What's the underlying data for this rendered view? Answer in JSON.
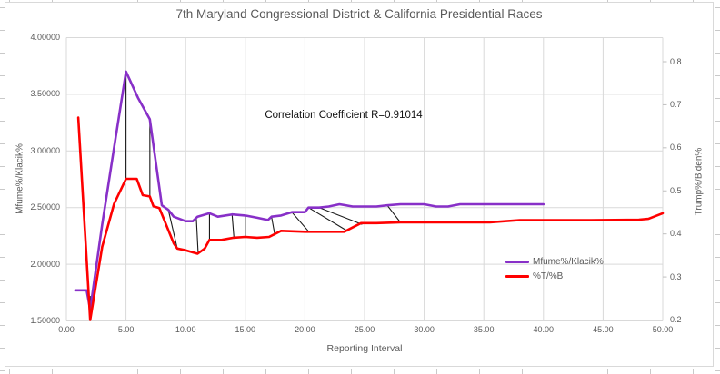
{
  "chart_data": {
    "type": "line",
    "title": "7th Maryland Congressional District & California Presidential Races",
    "annotation": "Correlation Coefficient R=0.91014",
    "xlabel": "Reporting Interval",
    "ylabel_left": "Mfume%/Klacik%",
    "ylabel_right": "Trump%/Biden%",
    "x_range": [
      0,
      50
    ],
    "y_left_range": [
      1.5,
      4.0
    ],
    "y_right_range": [
      0.2,
      0.8
    ],
    "grid": true,
    "legend_position": "inside-right",
    "colors": {
      "series1": "#8830C8",
      "series2": "#FF0000",
      "connector": "#1a1a1a",
      "gridline": "#d9d9d9",
      "axis_text": "#595959"
    },
    "x_ticks": [
      {
        "v": 0,
        "label": "0.00"
      },
      {
        "v": 5,
        "label": "5.00"
      },
      {
        "v": 10,
        "label": "10.00"
      },
      {
        "v": 15,
        "label": "15.00"
      },
      {
        "v": 20,
        "label": "20.00"
      },
      {
        "v": 25,
        "label": "25.00"
      },
      {
        "v": 30,
        "label": "30.00"
      },
      {
        "v": 35,
        "label": "35.00"
      },
      {
        "v": 40,
        "label": "40.00"
      },
      {
        "v": 45,
        "label": "45.00"
      },
      {
        "v": 50,
        "label": "50.00"
      }
    ],
    "y_left_ticks": [
      {
        "v": 1.5,
        "label": "1.50000"
      },
      {
        "v": 2.0,
        "label": "2.00000"
      },
      {
        "v": 2.5,
        "label": "2.50000"
      },
      {
        "v": 3.0,
        "label": "3.00000"
      },
      {
        "v": 3.5,
        "label": "3.50000"
      },
      {
        "v": 4.0,
        "label": "4.00000"
      }
    ],
    "y_right_ticks": [
      {
        "v": 0.2,
        "label": "0.2"
      },
      {
        "v": 0.3,
        "label": "0.3"
      },
      {
        "v": 0.4,
        "label": "0.4"
      },
      {
        "v": 0.5,
        "label": "0.5"
      },
      {
        "v": 0.6,
        "label": "0.6"
      },
      {
        "v": 0.7,
        "label": "0.7"
      },
      {
        "v": 0.8,
        "label": "0.8"
      }
    ],
    "series": [
      {
        "name": "Mfume%/Klacik%",
        "axis": "left",
        "color": "#8830C8",
        "points": [
          [
            0.75,
            1.77
          ],
          [
            1.7,
            1.77
          ],
          [
            2,
            1.6
          ],
          [
            3,
            2.35
          ],
          [
            4,
            3.03
          ],
          [
            5,
            3.7
          ],
          [
            6,
            3.47
          ],
          [
            7,
            3.28
          ],
          [
            8,
            2.52
          ],
          [
            8.55,
            2.48
          ],
          [
            9,
            2.42
          ],
          [
            10,
            2.38
          ],
          [
            10.6,
            2.38
          ],
          [
            11,
            2.42
          ],
          [
            12,
            2.45
          ],
          [
            12.7,
            2.42
          ],
          [
            13.9,
            2.44
          ],
          [
            15,
            2.43
          ],
          [
            16,
            2.41
          ],
          [
            16.9,
            2.39
          ],
          [
            17.2,
            2.42
          ],
          [
            18,
            2.43
          ],
          [
            18.9,
            2.46
          ],
          [
            20,
            2.46
          ],
          [
            20.3,
            2.5
          ],
          [
            21.2,
            2.5
          ],
          [
            22,
            2.51
          ],
          [
            22.9,
            2.53
          ],
          [
            24,
            2.51
          ],
          [
            25,
            2.51
          ],
          [
            26,
            2.51
          ],
          [
            26.9,
            2.52
          ],
          [
            28,
            2.53
          ],
          [
            30,
            2.53
          ],
          [
            31,
            2.51
          ],
          [
            32,
            2.51
          ],
          [
            33,
            2.53
          ],
          [
            36,
            2.53
          ],
          [
            40,
            2.53
          ]
        ]
      },
      {
        "name": "%T/%B",
        "axis": "right",
        "color": "#FF0000",
        "points": [
          [
            1,
            0.67
          ],
          [
            2,
            0.2
          ],
          [
            3,
            0.37
          ],
          [
            4,
            0.47
          ],
          [
            5,
            0.528
          ],
          [
            5.9,
            0.528
          ],
          [
            6.4,
            0.49
          ],
          [
            7,
            0.487
          ],
          [
            7.3,
            0.464
          ],
          [
            7.8,
            0.46
          ],
          [
            9,
            0.378
          ],
          [
            9.3,
            0.366
          ],
          [
            10,
            0.362
          ],
          [
            11,
            0.354
          ],
          [
            11.6,
            0.366
          ],
          [
            12,
            0.386
          ],
          [
            13,
            0.386
          ],
          [
            14,
            0.391
          ],
          [
            15,
            0.393
          ],
          [
            16,
            0.391
          ],
          [
            17,
            0.393
          ],
          [
            18,
            0.407
          ],
          [
            19,
            0.406
          ],
          [
            20,
            0.405
          ],
          [
            23.3,
            0.405
          ],
          [
            24.7,
            0.425
          ],
          [
            26,
            0.425
          ],
          [
            28,
            0.427
          ],
          [
            30,
            0.427
          ],
          [
            32,
            0.427
          ],
          [
            34,
            0.427
          ],
          [
            35.5,
            0.427
          ],
          [
            38,
            0.432
          ],
          [
            44,
            0.432
          ],
          [
            48,
            0.433
          ],
          [
            48.8,
            0.435
          ],
          [
            50,
            0.448
          ]
        ]
      }
    ],
    "connectors": [
      [
        2,
        1.72,
        2,
        0.205
      ],
      [
        5,
        3.7,
        5,
        0.528
      ],
      [
        7,
        3.28,
        7,
        0.487
      ],
      [
        8.55,
        2.48,
        9.3,
        0.366
      ],
      [
        10.9,
        2.4,
        11.05,
        0.354
      ],
      [
        12,
        2.45,
        12,
        0.386
      ],
      [
        13.9,
        2.43,
        14.05,
        0.391
      ],
      [
        15,
        2.42,
        15,
        0.393
      ],
      [
        17.2,
        2.42,
        17.5,
        0.394
      ],
      [
        18.9,
        2.46,
        20.3,
        0.406
      ],
      [
        20.3,
        2.5,
        23.6,
        0.406
      ],
      [
        21.2,
        2.5,
        24.8,
        0.422
      ],
      [
        26.9,
        2.52,
        28,
        0.427
      ]
    ],
    "legend": [
      {
        "label": "Mfume%/Klacik%",
        "color": "#8830C8"
      },
      {
        "label": "%T/%B",
        "color": "#FF0000"
      }
    ]
  }
}
